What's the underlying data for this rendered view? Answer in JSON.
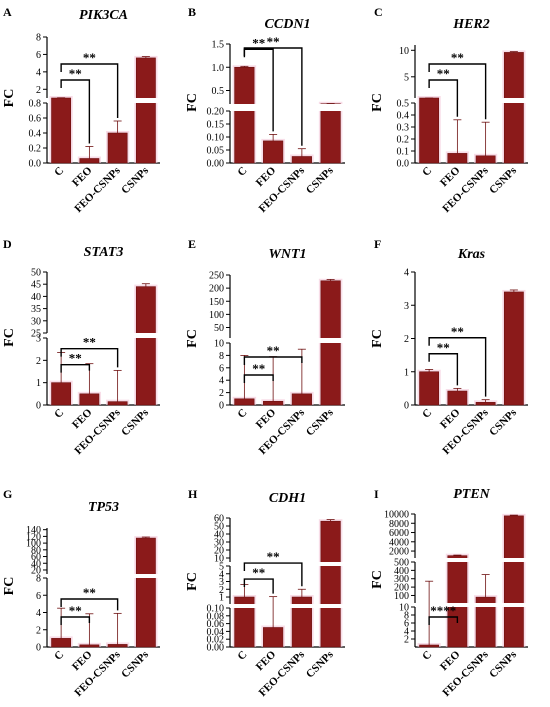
{
  "colors": {
    "bar": "#8b1a1a",
    "bar_edge": "#6e1010",
    "axis": "#000000",
    "glow": "#f4c6d8"
  },
  "axis_label": "FC",
  "chart_data": [
    {
      "type": "bar",
      "letter": "A",
      "title": "PIK3CA",
      "categories": [
        "C",
        "FEO",
        "FEO-CSNPs",
        "CSNPs"
      ],
      "values": [
        1.0,
        0.06,
        0.4,
        5.6
      ],
      "errors": [
        0.03,
        0.16,
        0.16,
        0.15
      ],
      "segments": [
        {
          "range": [
            0,
            0.8
          ],
          "ticks": [
            "0.0",
            "0.2",
            "0.4",
            "0.6",
            "0.8"
          ]
        },
        {
          "range": [
            1,
            8
          ],
          "ticks": [
            "2",
            "4",
            "6",
            "8"
          ]
        }
      ],
      "ylabel": "FC",
      "annotations": [
        {
          "from": 0,
          "to": 1,
          "label": "**"
        },
        {
          "from": 0,
          "to": 2,
          "label": "**"
        }
      ]
    },
    {
      "type": "bar",
      "letter": "B",
      "title": "CCDN1",
      "categories": [
        "C",
        "FEO",
        "FEO-CSNPs",
        "CSNPs"
      ],
      "values": [
        1.0,
        0.085,
        0.025,
        0.215
      ],
      "errors": [
        0.02,
        0.025,
        0.03,
        0.006
      ],
      "segments": [
        {
          "range": [
            0,
            0.2
          ],
          "ticks": [
            "0.00",
            "0.05",
            "0.10",
            "0.15",
            "0.20"
          ]
        },
        {
          "range": [
            0.21,
            1.5
          ],
          "ticks": [
            "0.5",
            "1.0",
            "1.5"
          ]
        }
      ],
      "ylabel": "FC",
      "annotations": [
        {
          "from": 0,
          "to": 1,
          "label": "**"
        },
        {
          "from": 0,
          "to": 2,
          "label": "**"
        }
      ]
    },
    {
      "type": "bar",
      "letter": "C",
      "title": "HER2",
      "categories": [
        "C",
        "FEO",
        "FEO-CSNPs",
        "CSNPs"
      ],
      "values": [
        0.6,
        0.08,
        0.06,
        9.6
      ],
      "errors": [
        0.02,
        0.28,
        0.28,
        0.15
      ],
      "segments": [
        {
          "range": [
            0,
            0.5
          ],
          "ticks": [
            "0.0",
            "0.1",
            "0.2",
            "0.3",
            "0.4",
            "0.5"
          ]
        },
        {
          "range": [
            1,
            11
          ],
          "ticks": [
            "5",
            "10"
          ]
        }
      ],
      "ylabel": "FC",
      "annotations": [
        {
          "from": 0,
          "to": 1,
          "label": "**"
        },
        {
          "from": 0,
          "to": 2,
          "label": "**"
        }
      ]
    },
    {
      "type": "bar",
      "letter": "D",
      "title": "STAT3",
      "categories": [
        "C",
        "FEO",
        "FEO-CSNPs",
        "CSNPs"
      ],
      "values": [
        1.0,
        0.5,
        0.15,
        44
      ],
      "errors": [
        1.35,
        1.35,
        1.4,
        1.2
      ],
      "segments": [
        {
          "range": [
            0,
            3
          ],
          "ticks": [
            "0",
            "1",
            "2",
            "3"
          ]
        },
        {
          "range": [
            25,
            50
          ],
          "ticks": [
            "25",
            "30",
            "35",
            "40",
            "45",
            "50"
          ]
        }
      ],
      "ylabel": "FC",
      "annotations": [
        {
          "from": 0,
          "to": 1,
          "label": "**"
        },
        {
          "from": 0,
          "to": 2,
          "label": "**"
        }
      ]
    },
    {
      "type": "bar",
      "letter": "E",
      "title": "WNT1",
      "categories": [
        "C",
        "FEO",
        "FEO-CSNPs",
        "CSNPs"
      ],
      "values": [
        1.0,
        0.6,
        1.8,
        228
      ],
      "errors": [
        7.0,
        7.2,
        7.2,
        5.0
      ],
      "segments": [
        {
          "range": [
            0,
            10
          ],
          "ticks": [
            "0",
            "2",
            "4",
            "6",
            "8",
            "10"
          ]
        },
        {
          "range": [
            10,
            250
          ],
          "ticks": [
            "50",
            "100",
            "150",
            "200",
            "250"
          ]
        }
      ],
      "ylabel": "FC",
      "annotations": [
        {
          "from": 0,
          "to": 1,
          "label": "**"
        },
        {
          "from": 0,
          "to": 2,
          "label": "**"
        }
      ]
    },
    {
      "type": "bar",
      "letter": "F",
      "title": "Kras",
      "categories": [
        "C",
        "FEO",
        "FEO-CSNPs",
        "CSNPs"
      ],
      "values": [
        1.0,
        0.42,
        0.08,
        3.4
      ],
      "errors": [
        0.07,
        0.08,
        0.08,
        0.06
      ],
      "segments": [
        {
          "range": [
            0,
            4
          ],
          "ticks": [
            "0",
            "1",
            "2",
            "3",
            "4"
          ]
        }
      ],
      "ylabel": "FC",
      "annotations": [
        {
          "from": 0,
          "to": 1,
          "label": "**"
        },
        {
          "from": 0,
          "to": 2,
          "label": "**"
        }
      ]
    },
    {
      "type": "bar",
      "letter": "G",
      "title": "TP53",
      "categories": [
        "C",
        "FEO",
        "FEO-CSNPs",
        "CSNPs"
      ],
      "values": [
        1.0,
        0.25,
        0.3,
        115
      ],
      "errors": [
        3.5,
        3.6,
        3.6,
        3.0
      ],
      "segments": [
        {
          "range": [
            0,
            8
          ],
          "ticks": [
            "0",
            "2",
            "4",
            "6",
            "8"
          ]
        },
        {
          "range": [
            8,
            145
          ],
          "ticks": [
            "20",
            "40",
            "60",
            "80",
            "100",
            "120",
            "140"
          ]
        }
      ],
      "ylabel": "FC",
      "annotations": [
        {
          "from": 0,
          "to": 1,
          "label": "**"
        },
        {
          "from": 0,
          "to": 2,
          "label": "**"
        }
      ]
    },
    {
      "type": "bar",
      "letter": "H",
      "title": "CDH1",
      "categories": [
        "C",
        "FEO",
        "FEO-CSNPs",
        "CSNPs"
      ],
      "values": [
        1.0,
        0.05,
        1.0,
        56
      ],
      "errors": [
        1.6,
        1.0,
        1.0,
        2.0
      ],
      "segments": [
        {
          "range": [
            0,
            0.1
          ],
          "ticks": [
            "0.00",
            "0.02",
            "0.04",
            "0.06",
            "0.08",
            "0.10"
          ]
        },
        {
          "range": [
            0.1,
            5
          ],
          "ticks": [
            "1",
            "2",
            "3",
            "4",
            "5"
          ]
        },
        {
          "range": [
            5,
            60
          ],
          "ticks": [
            "10",
            "20",
            "30",
            "40",
            "50",
            "60"
          ]
        }
      ],
      "ylabel": "FC",
      "annotations": [
        {
          "from": 0,
          "to": 1,
          "label": "**"
        },
        {
          "from": 0,
          "to": 2,
          "label": "**"
        }
      ]
    },
    {
      "type": "bar",
      "letter": "I",
      "title": "PTEN",
      "categories": [
        "C",
        "FEO",
        "FEO-CSNPs",
        "CSNPs"
      ],
      "values": [
        0.5,
        1000,
        80,
        9600
      ],
      "errors": [
        270,
        120,
        270,
        150
      ],
      "segments": [
        {
          "range": [
            0,
            10
          ],
          "ticks": [
            "2",
            "4",
            "6",
            "8",
            "10"
          ]
        },
        {
          "range": [
            10,
            500
          ],
          "ticks": [
            "100",
            "200",
            "300",
            "400",
            "500"
          ]
        },
        {
          "range": [
            500,
            10000
          ],
          "ticks": [
            "2000",
            "4000",
            "6000",
            "8000",
            "10000"
          ]
        }
      ],
      "ylabel": "FC",
      "annotations": [
        {
          "from": 0,
          "to": 1,
          "label": "****"
        }
      ]
    }
  ]
}
